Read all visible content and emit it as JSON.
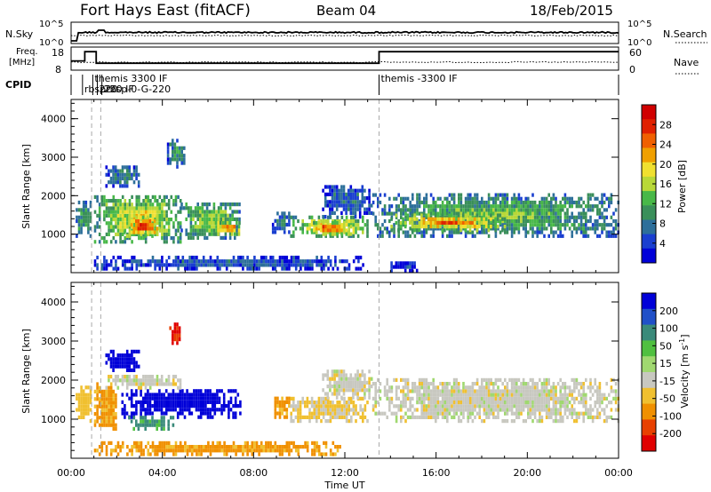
{
  "header": {
    "station": "Fort Hays East (fitACF)",
    "beam": "Beam 04",
    "date": "18/Feb/2015"
  },
  "colors": {
    "background": "#ffffff",
    "axis": "#000000",
    "gridline": "#aaaaaa",
    "ground_scatter": "#c8c8c0"
  },
  "nsky_panel": {
    "left_label": "N.Sky",
    "right_label": "N.Search",
    "left_ticks": [
      "10^5",
      "10^0"
    ],
    "right_ticks": [
      "10^5",
      "10^0"
    ]
  },
  "freq_panel": {
    "left_label_line1": "Freq.",
    "left_label_line2": "[MHz]",
    "right_label": "Nave",
    "left_ticks": [
      "18",
      "8"
    ],
    "right_ticks": [
      "60",
      "0"
    ],
    "freq_steps": [
      {
        "t": 0.0,
        "mhz": 12
      },
      {
        "t": 0.6,
        "mhz": 16
      },
      {
        "t": 1.1,
        "mhz": 11
      },
      {
        "t": 13.0,
        "mhz": 11
      },
      {
        "t": 13.5,
        "mhz": 16
      },
      {
        "t": 24.0,
        "mhz": 16
      }
    ]
  },
  "cpid": {
    "label": "CPID",
    "entries": [
      {
        "t": 0.5,
        "text": "rbsprbsp-0-G-220"
      },
      {
        "t": 0.95,
        "text": "themis 3300 IF"
      },
      {
        "t": 1.15,
        "text": "220"
      },
      {
        "t": 1.35,
        "text": "220 IF"
      },
      {
        "t": 13.5,
        "text": "themis -3300 IF"
      }
    ]
  },
  "chart_data": [
    {
      "type": "heatmap",
      "name": "power",
      "ylabel": "Slant Range [km]",
      "yticks": [
        "1000",
        "2000",
        "3000",
        "4000"
      ],
      "ylim": [
        0,
        4500
      ],
      "xlim": [
        0,
        24
      ],
      "colorbar": {
        "label": "Power [dB]",
        "ticks": [
          "4",
          "8",
          "12",
          "16",
          "20",
          "24",
          "28"
        ],
        "colors": [
          "#0000d8",
          "#1a3fd0",
          "#2d6f9a",
          "#3a8f5a",
          "#48b848",
          "#b8d838",
          "#f0e030",
          "#f0a000",
          "#f06000",
          "#e02000",
          "#d00000"
        ]
      },
      "regions": [
        {
          "t0": 0.2,
          "t1": 0.9,
          "r0": 1000,
          "r1": 1900,
          "p": 12
        },
        {
          "t0": 1.0,
          "t1": 4.8,
          "r0": 850,
          "r1": 2100,
          "p": 16
        },
        {
          "t0": 2.3,
          "t1": 3.9,
          "r0": 1000,
          "r1": 1500,
          "p": 24
        },
        {
          "t0": 4.8,
          "t1": 7.4,
          "r0": 950,
          "r1": 1900,
          "p": 14
        },
        {
          "t0": 6.3,
          "t1": 7.4,
          "r0": 1050,
          "r1": 1350,
          "p": 22
        },
        {
          "t0": 1.5,
          "t1": 3.0,
          "r0": 2300,
          "r1": 2800,
          "p": 8
        },
        {
          "t0": 4.2,
          "t1": 5.0,
          "r0": 2800,
          "r1": 3550,
          "p": 10
        },
        {
          "t0": 8.8,
          "t1": 9.6,
          "r0": 1100,
          "r1": 1650,
          "p": 8
        },
        {
          "t0": 9.6,
          "t1": 13.0,
          "r0": 1000,
          "r1": 1500,
          "p": 18
        },
        {
          "t0": 10.4,
          "t1": 12.3,
          "r0": 1050,
          "r1": 1350,
          "p": 23
        },
        {
          "t0": 11.0,
          "t1": 13.2,
          "r0": 1500,
          "r1": 2300,
          "p": 7
        },
        {
          "t0": 13.2,
          "t1": 24.0,
          "r0": 1000,
          "r1": 2100,
          "p": 12
        },
        {
          "t0": 14.0,
          "t1": 19.0,
          "r0": 1150,
          "r1": 1550,
          "p": 21
        },
        {
          "t0": 1.0,
          "t1": 13.0,
          "r0": 150,
          "r1": 450,
          "p": 6
        },
        {
          "t0": 14.0,
          "t1": 15.2,
          "r0": 100,
          "r1": 350,
          "p": 5
        }
      ]
    },
    {
      "type": "heatmap",
      "name": "velocity",
      "ylabel": "Slant Range [km]",
      "yticks": [
        "1000",
        "2000",
        "3000",
        "4000"
      ],
      "ylim": [
        0,
        4500
      ],
      "xlim": [
        0,
        24
      ],
      "xlabel": "Time UT",
      "xticks": [
        "00:00",
        "04:00",
        "08:00",
        "12:00",
        "16:00",
        "20:00",
        "00:00"
      ],
      "colorbar": {
        "label": "Velocity [m s^-1]",
        "ticks": [
          "200",
          "100",
          "50",
          "15",
          "-15",
          "-50",
          "-100",
          "-200"
        ],
        "colors": [
          "#0000d8",
          "#2050c8",
          "#3a8a7a",
          "#50c040",
          "#a0d870",
          "#c8c8c0",
          "#f0c030",
          "#f09000",
          "#e84000",
          "#e00000"
        ]
      },
      "regions": [
        {
          "t0": 0.2,
          "t1": 0.9,
          "r0": 1000,
          "r1": 1900,
          "v": -30
        },
        {
          "t0": 1.0,
          "t1": 2.0,
          "r0": 800,
          "r1": 2000,
          "v": -60
        },
        {
          "t0": 2.2,
          "t1": 7.4,
          "r0": 1100,
          "r1": 1850,
          "v": 200
        },
        {
          "t0": 2.5,
          "t1": 4.5,
          "r0": 800,
          "r1": 1100,
          "v": 60
        },
        {
          "t0": 1.5,
          "t1": 3.0,
          "r0": 2300,
          "r1": 2800,
          "v": 180
        },
        {
          "t0": 4.3,
          "t1": 4.8,
          "r0": 2900,
          "r1": 3500,
          "v": -150
        },
        {
          "t0": 1.5,
          "t1": 4.8,
          "r0": 1850,
          "r1": 2200,
          "v": 0
        },
        {
          "t0": 8.8,
          "t1": 9.6,
          "r0": 1100,
          "r1": 1650,
          "v": -60
        },
        {
          "t0": 9.6,
          "t1": 13.0,
          "r0": 1000,
          "r1": 1600,
          "v": -20
        },
        {
          "t0": 11.0,
          "t1": 13.2,
          "r0": 1600,
          "r1": 2300,
          "v": 0
        },
        {
          "t0": 13.2,
          "t1": 24.0,
          "r0": 1000,
          "r1": 2100,
          "v": 0
        },
        {
          "t0": 1.0,
          "t1": 12.0,
          "r0": 150,
          "r1": 450,
          "v": -60
        }
      ]
    }
  ]
}
